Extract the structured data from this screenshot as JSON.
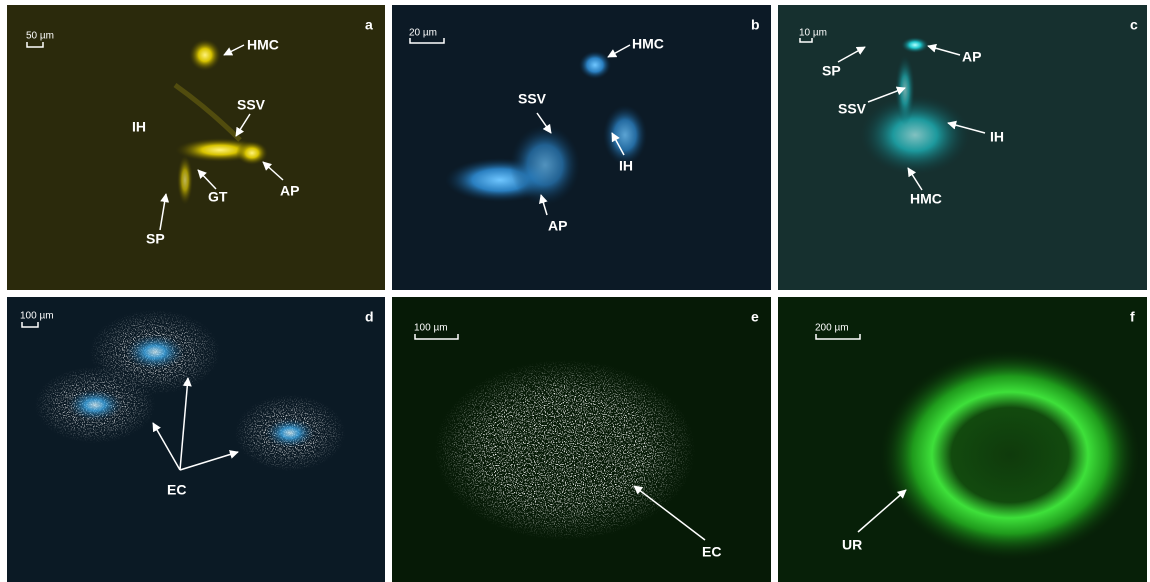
{
  "panels": [
    {
      "letter": "a",
      "scale_bar": "50 µm",
      "labels": [
        "HMC",
        "SSV",
        "IH",
        "AP",
        "GT",
        "SP"
      ]
    },
    {
      "letter": "b",
      "scale_bar": "20 µm",
      "labels": [
        "HMC",
        "SSV",
        "IH",
        "AP"
      ]
    },
    {
      "letter": "c",
      "scale_bar": "10 µm",
      "labels": [
        "SP",
        "AP",
        "SSV",
        "IH",
        "HMC"
      ]
    },
    {
      "letter": "d",
      "scale_bar": "100 µm",
      "labels": [
        "EC"
      ]
    },
    {
      "letter": "e",
      "scale_bar": "100 µm",
      "labels": [
        "EC"
      ]
    },
    {
      "letter": "f",
      "scale_bar": "200 µm",
      "labels": [
        "UR"
      ]
    }
  ]
}
